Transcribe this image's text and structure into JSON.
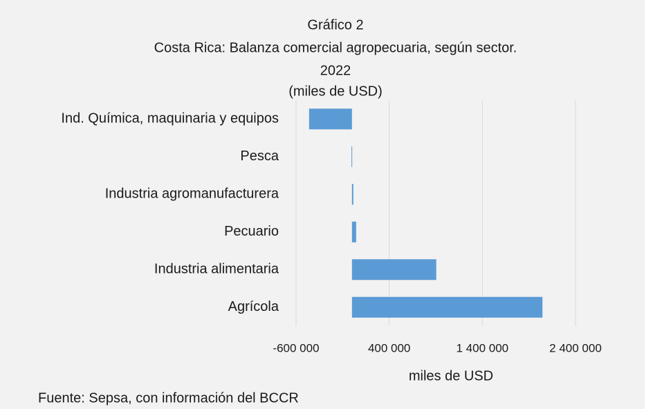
{
  "chart_data": {
    "type": "barh",
    "title": "Gráfico 2",
    "subtitle": [
      "Costa Rica: Balanza comercial agropecuaria, según sector.",
      "2022",
      "(miles de USD)"
    ],
    "categories": [
      "Ind. Química, maquinaria y equipos",
      "Pesca",
      "Industria agromanufacturera",
      "Pecuario",
      "Industria alimentaria",
      "Agrícola"
    ],
    "values": [
      -460000,
      -5000,
      15000,
      45000,
      905000,
      2045000
    ],
    "color": "#5b9bd5",
    "xlim": [
      -600000,
      2400000
    ],
    "xticks": [
      {
        "value": -600000,
        "label": "-600 000"
      },
      {
        "value": 400000,
        "label": "400 000"
      },
      {
        "value": 1400000,
        "label": "1 400 000"
      },
      {
        "value": 2400000,
        "label": "2 400 000"
      }
    ],
    "xlabel": "miles de USD",
    "grid": true,
    "source": "Fuente: Sepsa, con información del BCCR"
  }
}
